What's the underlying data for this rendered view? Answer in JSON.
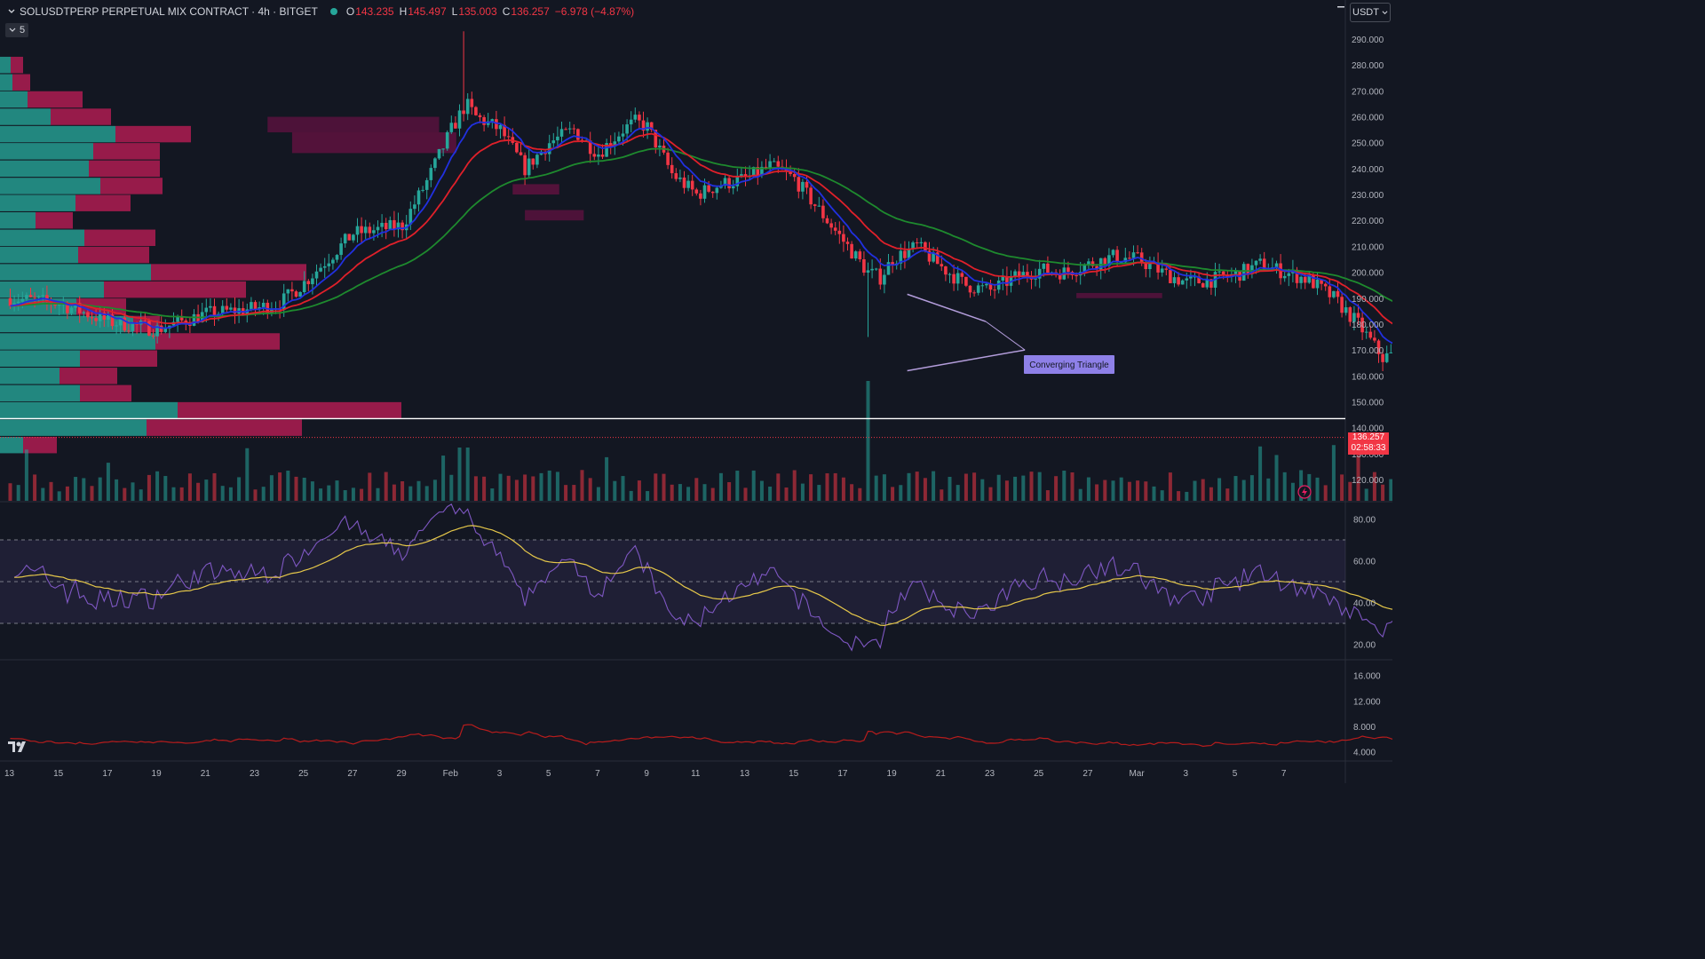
{
  "header": {
    "title": "SOLUSDTPERP PERPETUAL MIX CONTRACT · 4h · BITGET",
    "o_label": "O",
    "o": "143.235",
    "h_label": "H",
    "h": "145.497",
    "l_label": "L",
    "l": "135.003",
    "c_label": "C",
    "c": "136.257",
    "change": "−6.978 (−4.87%)",
    "indicators_count": "5",
    "currency": "USDT"
  },
  "price_tag": {
    "price": "136.257",
    "countdown": "02:58:33"
  },
  "annotation": {
    "label": "Converging Triangle"
  },
  "colors": {
    "background": "#131722",
    "up": "#26a69a",
    "down": "#f23645",
    "ema_fast": "#2130e0",
    "ema_mid": "#e0202a",
    "ema_slow": "#1e8a2e",
    "rsi": "#7e57c2",
    "rsi_ma": "#e6c84a",
    "atr": "#b71c1c"
  },
  "chart_data": [
    {
      "type": "candlestick",
      "name": "price",
      "y_ticks": [
        "120.000",
        "130.000",
        "140.000",
        "150.000",
        "160.000",
        "170.000",
        "180.000",
        "190.000",
        "200.000",
        "210.000",
        "220.000",
        "230.000",
        "240.000",
        "250.000",
        "260.000",
        "270.000",
        "280.000",
        "290.000"
      ],
      "ylim": [
        114,
        296
      ],
      "x_ticks": [
        "13",
        "15",
        "17",
        "19",
        "21",
        "23",
        "25",
        "27",
        "29",
        "Feb",
        "3",
        "5",
        "7",
        "9",
        "11",
        "13",
        "15",
        "17",
        "19",
        "21",
        "23",
        "25",
        "27",
        "Mar",
        "3",
        "5",
        "7"
      ],
      "horizontal_line": 143.5,
      "last_close": 136.257,
      "path_key_points": [
        [
          0,
          190
        ],
        [
          2,
          188
        ],
        [
          4,
          181
        ],
        [
          6,
          178
        ],
        [
          8,
          184
        ],
        [
          10,
          186
        ],
        [
          11,
          188
        ],
        [
          12,
          196
        ],
        [
          14,
          215
        ],
        [
          16,
          218
        ],
        [
          17,
          235
        ],
        [
          18,
          255
        ],
        [
          18.6,
          265
        ],
        [
          19,
          260
        ],
        [
          20,
          255
        ],
        [
          21,
          240
        ],
        [
          22,
          250
        ],
        [
          23,
          255
        ],
        [
          23.5,
          250
        ],
        [
          24,
          246
        ],
        [
          25,
          255
        ],
        [
          25.5,
          258
        ],
        [
          26,
          256
        ],
        [
          27,
          238
        ],
        [
          28,
          230
        ],
        [
          29,
          234
        ],
        [
          30,
          236
        ],
        [
          31,
          241
        ],
        [
          32,
          236
        ],
        [
          33,
          224
        ],
        [
          34,
          212
        ],
        [
          35,
          200
        ],
        [
          35.5,
          198
        ],
        [
          36,
          205
        ],
        [
          37,
          210
        ],
        [
          38,
          202
        ],
        [
          39,
          195
        ],
        [
          40,
          193
        ],
        [
          41,
          198
        ],
        [
          42,
          201
        ],
        [
          43,
          200
        ],
        [
          44,
          203
        ],
        [
          45,
          206
        ],
        [
          46,
          205
        ],
        [
          47,
          200
        ],
        [
          48,
          196
        ],
        [
          49,
          197
        ],
        [
          50,
          199
        ],
        [
          51,
          203
        ],
        [
          52,
          200
        ],
        [
          53,
          197
        ],
        [
          54,
          190
        ],
        [
          55,
          180
        ],
        [
          56,
          167
        ],
        [
          57,
          170
        ],
        [
          58,
          173
        ],
        [
          59,
          176
        ],
        [
          60,
          172
        ],
        [
          61,
          172
        ],
        [
          62,
          168
        ],
        [
          63,
          160
        ],
        [
          64,
          148
        ],
        [
          65,
          142
        ],
        [
          66,
          140
        ],
        [
          67,
          136
        ],
        [
          68,
          134
        ],
        [
          69,
          138
        ],
        [
          70,
          145
        ],
        [
          71,
          142
        ],
        [
          72,
          140
        ],
        [
          72.5,
          145
        ],
        [
          73,
          175
        ],
        [
          73.4,
          158
        ],
        [
          74,
          150
        ],
        [
          74.5,
          143
        ],
        [
          75,
          145
        ],
        [
          76,
          146
        ],
        [
          77,
          150
        ],
        [
          77.6,
          145
        ],
        [
          78,
          137
        ]
      ],
      "profile_rows": [
        {
          "price": 133.3,
          "up": 26,
          "down": 38
        },
        {
          "price": 140.0,
          "up": 165,
          "down": 175
        },
        {
          "price": 146.7,
          "up": 200,
          "down": 252
        },
        {
          "price": 153.3,
          "up": 90,
          "down": 58
        },
        {
          "price": 160.0,
          "up": 67,
          "down": 65
        },
        {
          "price": 166.7,
          "up": 90,
          "down": 87
        },
        {
          "price": 173.3,
          "up": 175,
          "down": 140
        },
        {
          "price": 180.0,
          "up": 150,
          "down": 30
        },
        {
          "price": 186.7,
          "up": 86,
          "down": 56
        },
        {
          "price": 193.3,
          "up": 117,
          "down": 160
        },
        {
          "price": 200.0,
          "up": 170,
          "down": 175
        },
        {
          "price": 206.7,
          "up": 88,
          "down": 80
        },
        {
          "price": 213.3,
          "up": 95,
          "down": 80
        },
        {
          "price": 220.0,
          "up": 40,
          "down": 42
        },
        {
          "price": 226.7,
          "up": 85,
          "down": 62
        },
        {
          "price": 233.3,
          "up": 113,
          "down": 70
        },
        {
          "price": 240.0,
          "up": 100,
          "down": 80
        },
        {
          "price": 246.7,
          "up": 105,
          "down": 75
        },
        {
          "price": 253.3,
          "up": 130,
          "down": 85
        },
        {
          "price": 260.0,
          "up": 57,
          "down": 68
        },
        {
          "price": 266.7,
          "up": 31,
          "down": 62
        },
        {
          "price": 273.3,
          "up": 14,
          "down": 20
        },
        {
          "price": 280.0,
          "up": 12,
          "down": 14
        }
      ]
    },
    {
      "type": "line",
      "name": "RSI",
      "y_ticks": [
        "20.00",
        "40.00",
        "60.00",
        "80.00"
      ],
      "ylim": [
        16,
        84
      ],
      "bands": [
        30,
        50,
        70
      ]
    },
    {
      "type": "line",
      "name": "ATR",
      "y_ticks": [
        "4.000",
        "8.000",
        "12.000",
        "16.000"
      ],
      "ylim": [
        3.5,
        17.5
      ]
    }
  ]
}
